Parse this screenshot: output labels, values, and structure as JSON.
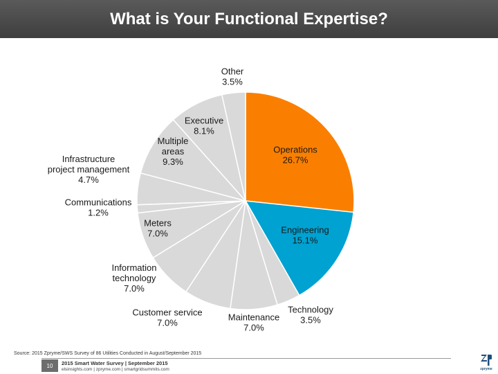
{
  "header": {
    "title": "What is Your Functional Expertise?"
  },
  "chart_data": {
    "type": "pie",
    "title": "What is Your Functional Expertise?",
    "slices": [
      {
        "label": "Operations",
        "value": 26.7,
        "display": "26.7%",
        "color": "#fa7f00"
      },
      {
        "label": "Engineering",
        "value": 15.1,
        "display": "15.1%",
        "color": "#00a2d1"
      },
      {
        "label": "Technology",
        "value": 3.5,
        "display": "3.5%",
        "color": "#d9d9d9"
      },
      {
        "label": "Maintenance",
        "value": 7.0,
        "display": "7.0%",
        "color": "#d9d9d9"
      },
      {
        "label": "Customer service",
        "value": 7.0,
        "display": "7.0%",
        "color": "#d9d9d9"
      },
      {
        "label": "Information technology",
        "value": 7.0,
        "display": "7.0%",
        "color": "#d9d9d9"
      },
      {
        "label": "Meters",
        "value": 7.0,
        "display": "7.0%",
        "color": "#d9d9d9"
      },
      {
        "label": "Communications",
        "value": 1.2,
        "display": "1.2%",
        "color": "#d9d9d9"
      },
      {
        "label": "Infrastructure project management",
        "value": 4.7,
        "display": "4.7%",
        "color": "#d9d9d9"
      },
      {
        "label": "Multiple areas",
        "value": 9.3,
        "display": "9.3%",
        "color": "#d9d9d9"
      },
      {
        "label": "Executive",
        "value": 8.1,
        "display": "8.1%",
        "color": "#d9d9d9"
      },
      {
        "label": "Other",
        "value": 3.5,
        "display": "3.5%",
        "color": "#d9d9d9"
      }
    ]
  },
  "footer": {
    "source": "Source: 2015 Zpryme/SWS Survey of 86 Utilities Conducted in August/September 2015",
    "page_number": "10",
    "title": "2015 Smart Water Survey | September 2015",
    "links": "elsinsights.com | zpryme.com | smartgridsummits.com",
    "logo_text": "zpryme"
  }
}
